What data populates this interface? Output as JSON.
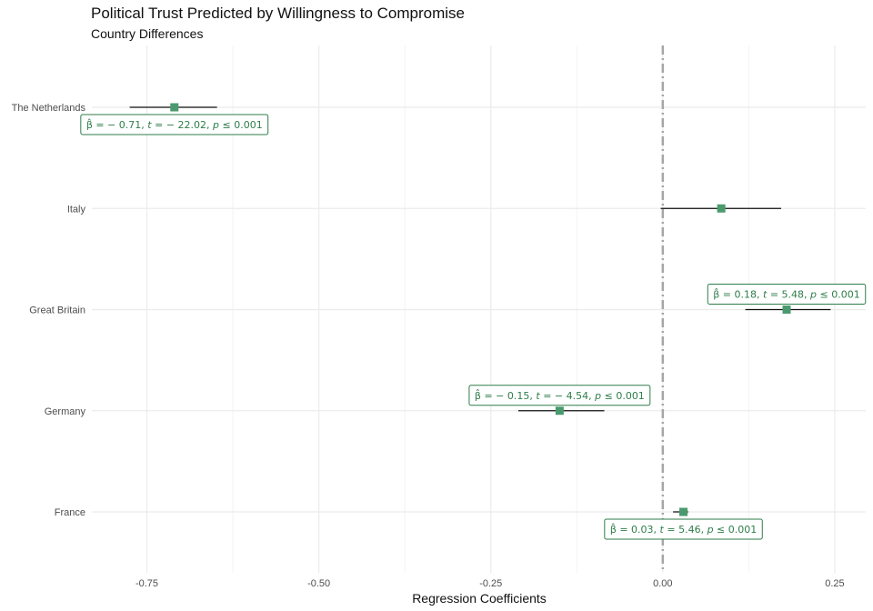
{
  "chart_data": {
    "type": "dot-whisker",
    "title": "Political Trust Predicted by Willingness to Compromise",
    "subtitle": "Country Differences",
    "xlabel": "Regression Coefficients",
    "ylabel": "",
    "xlim": [
      -0.83,
      0.295
    ],
    "x_ticks": [
      -0.75,
      -0.5,
      -0.25,
      0,
      0.25
    ],
    "x_tick_labels": [
      "-0.75",
      "-0.50",
      "-0.25",
      "0.00",
      "0.25"
    ],
    "categories": [
      "The Netherlands",
      "Italy",
      "Great Britain",
      "Germany",
      "France"
    ],
    "estimates": [
      -0.71,
      0.085,
      0.18,
      -0.15,
      0.03
    ],
    "ci_low": [
      -0.775,
      -0.003,
      0.12,
      -0.21,
      0.015
    ],
    "ci_high": [
      -0.648,
      0.172,
      0.244,
      -0.085,
      0.037
    ],
    "labels": [
      {
        "beta": "-0.71",
        "t": "-22.02",
        "p": "0.001",
        "position": "below"
      },
      null,
      {
        "beta": "0.18",
        "t": "5.48",
        "p": "0.001",
        "position": "above"
      },
      {
        "beta": "-0.15",
        "t": "-4.54",
        "p": "0.001",
        "position": "above"
      },
      {
        "beta": "0.03",
        "t": "5.46",
        "p": "0.001",
        "position": "below"
      }
    ],
    "reference_line": 0,
    "grid": true,
    "colors": {
      "point": "#4a9a6e",
      "label": "#2e7d4a",
      "whisker": "#111111",
      "reference": "#a6a6a6",
      "grid": "#ebebeb"
    }
  }
}
